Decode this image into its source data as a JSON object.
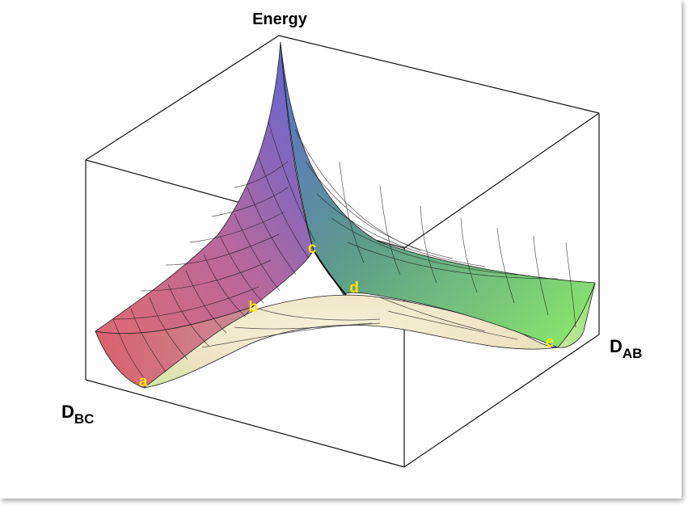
{
  "axes": {
    "vertical": "Energy",
    "right": {
      "main": "D",
      "sub": "AB"
    },
    "left": {
      "main": "D",
      "sub": "BC"
    }
  },
  "points": [
    {
      "id": "a",
      "label": "a"
    },
    {
      "id": "b",
      "label": "b"
    },
    {
      "id": "c",
      "label": "c"
    },
    {
      "id": "d",
      "label": "d"
    },
    {
      "id": "e",
      "label": "e"
    }
  ],
  "colors": {
    "label": "#ffe600",
    "box": "#000000",
    "peak": "#5566dd",
    "left_valley": "#e06070",
    "right_valley": "#88ee66",
    "saddle": "#f3ecd2"
  }
}
